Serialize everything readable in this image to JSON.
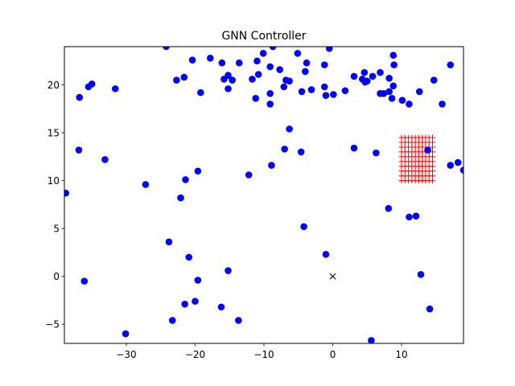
{
  "chart_data": {
    "type": "scatter",
    "title": "GNN Controller",
    "xlabel": "",
    "ylabel": "",
    "xlim": [
      -39,
      19
    ],
    "ylim": [
      -7,
      24
    ],
    "xticks": [
      -30,
      -20,
      -10,
      0,
      10
    ],
    "yticks": [
      -5,
      0,
      5,
      10,
      15,
      20
    ],
    "xtick_labels": [
      "−30",
      "−20",
      "−10",
      "0",
      "10"
    ],
    "ytick_labels": [
      "−5",
      "0",
      "5",
      "10",
      "15",
      "20"
    ],
    "grid": false,
    "colors": {
      "agents": "#0000ff",
      "goal": "#ff0000",
      "origin": "#000000"
    },
    "series": [
      {
        "marker": "circle",
        "color": "#0000ff",
        "points": [
          [
            -24.2,
            24.0
          ],
          [
            -8.7,
            24.0
          ],
          [
            -0.5,
            23.8
          ],
          [
            8.8,
            23.1
          ],
          [
            -10.1,
            23.3
          ],
          [
            -5.1,
            23.3
          ],
          [
            -17.8,
            22.8
          ],
          [
            -20.4,
            22.6
          ],
          [
            -11.0,
            22.5
          ],
          [
            -16.1,
            22.3
          ],
          [
            -13.6,
            22.3
          ],
          [
            -3.8,
            22.3
          ],
          [
            8.9,
            22.1
          ],
          [
            17.1,
            22.1
          ],
          [
            -1.2,
            22.1
          ],
          [
            -9.1,
            21.9
          ],
          [
            -7.7,
            21.6
          ],
          [
            -4.0,
            21.4
          ],
          [
            4.6,
            21.3
          ],
          [
            6.9,
            21.3
          ],
          [
            -15.2,
            21.0
          ],
          [
            -10.8,
            21.1
          ],
          [
            3.1,
            20.9
          ],
          [
            -21.6,
            20.8
          ],
          [
            5.8,
            20.9
          ],
          [
            -15.8,
            20.6
          ],
          [
            -11.7,
            20.6
          ],
          [
            -22.7,
            20.5
          ],
          [
            4.3,
            20.6
          ],
          [
            -6.8,
            20.5
          ],
          [
            -6.3,
            20.4
          ],
          [
            -14.6,
            20.5
          ],
          [
            8.2,
            20.7
          ],
          [
            4.7,
            20.3
          ],
          [
            14.7,
            20.5
          ],
          [
            5.0,
            20.4
          ],
          [
            -35.0,
            20.1
          ],
          [
            -35.5,
            19.8
          ],
          [
            -15.2,
            19.6
          ],
          [
            -31.6,
            19.6
          ],
          [
            -7.1,
            19.8
          ],
          [
            -1.2,
            19.8
          ],
          [
            -3.1,
            19.5
          ],
          [
            -4.5,
            19.3
          ],
          [
            1.8,
            19.4
          ],
          [
            8.8,
            19.9
          ],
          [
            -19.2,
            19.2
          ],
          [
            -9.1,
            19.1
          ],
          [
            8.2,
            19.3
          ],
          [
            7.4,
            19.1
          ],
          [
            6.9,
            19.1
          ],
          [
            12.6,
            19.3
          ],
          [
            0.1,
            19.0
          ],
          [
            -1.0,
            18.9
          ],
          [
            -36.8,
            18.7
          ],
          [
            -11.2,
            18.6
          ],
          [
            8.6,
            18.6
          ],
          [
            10.1,
            18.4
          ],
          [
            11.1,
            18.0
          ],
          [
            15.9,
            18.0
          ],
          [
            -9.1,
            18.0
          ],
          [
            -6.3,
            15.4
          ],
          [
            -36.9,
            13.2
          ],
          [
            -7.0,
            13.3
          ],
          [
            -4.6,
            13.0
          ],
          [
            3.1,
            13.4
          ],
          [
            6.3,
            12.9
          ],
          [
            13.8,
            13.2
          ],
          [
            -33.1,
            12.2
          ],
          [
            18.2,
            11.9
          ],
          [
            17.1,
            11.6
          ],
          [
            19.0,
            11.1
          ],
          [
            -8.9,
            11.6
          ],
          [
            -19.6,
            11.0
          ],
          [
            -12.2,
            10.6
          ],
          [
            -21.4,
            10.1
          ],
          [
            -27.2,
            9.6
          ],
          [
            -38.8,
            8.7
          ],
          [
            -22.1,
            8.2
          ],
          [
            8.1,
            7.1
          ],
          [
            11.1,
            6.2
          ],
          [
            12.1,
            6.3
          ],
          [
            -4.2,
            5.2
          ],
          [
            -23.8,
            3.6
          ],
          [
            -1.0,
            2.3
          ],
          [
            -20.9,
            2.0
          ],
          [
            -15.2,
            0.6
          ],
          [
            12.8,
            0.2
          ],
          [
            -19.6,
            -0.4
          ],
          [
            -36.1,
            -0.5
          ],
          [
            -21.5,
            -2.9
          ],
          [
            -20.0,
            -2.6
          ],
          [
            -16.2,
            -3.2
          ],
          [
            14.1,
            -3.4
          ],
          [
            -23.3,
            -4.6
          ],
          [
            -13.7,
            -4.6
          ],
          [
            -30.1,
            -6.0
          ],
          [
            5.6,
            -6.7
          ]
        ]
      },
      {
        "marker": "plus",
        "color": "#ff0000",
        "grid_x": [
          10.0,
          14.5,
          0.5
        ],
        "grid_y": [
          10.0,
          14.5,
          0.5
        ]
      },
      {
        "marker": "x",
        "color": "#000000",
        "points": [
          [
            0,
            0
          ]
        ]
      }
    ]
  }
}
